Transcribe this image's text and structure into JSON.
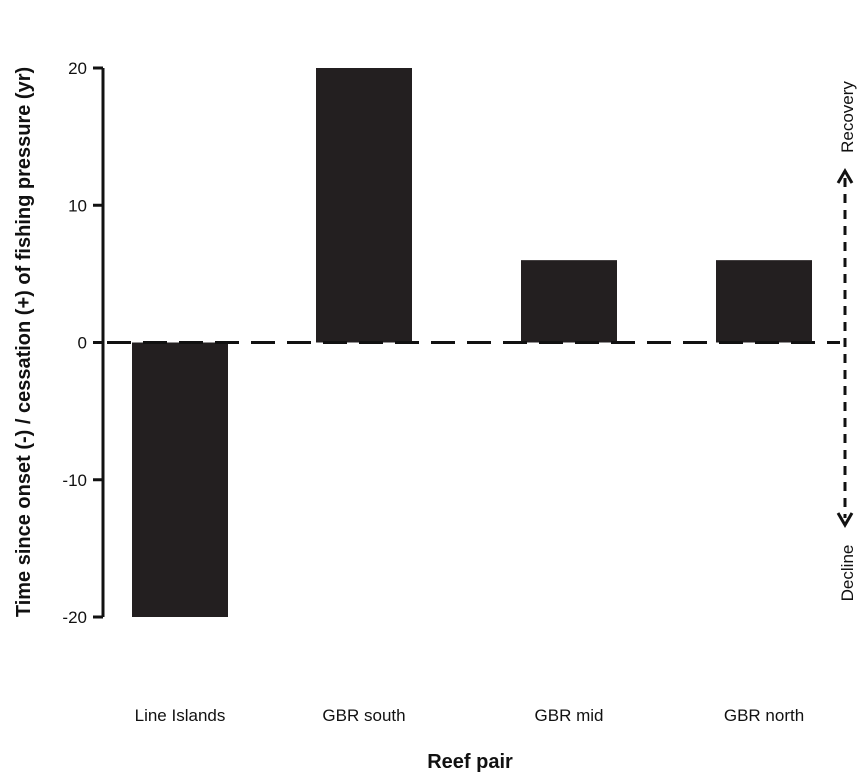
{
  "chart_data": {
    "type": "bar",
    "categories": [
      "Line Islands",
      "GBR south",
      "GBR mid",
      "GBR north"
    ],
    "values": [
      -20,
      20,
      6,
      6
    ],
    "xlabel": "Reef pair",
    "ylabel": "Time since onset (-) / cessation (+) of fishing pressure (yr)",
    "ylim": [
      -20,
      20
    ],
    "yticks": [
      -20,
      -10,
      0,
      10,
      20
    ],
    "grid": false,
    "reference_line": 0,
    "annotations": {
      "top": "Recovery",
      "bottom": "Decline"
    },
    "colors": {
      "bar": "#231f20",
      "axis": "#111111"
    }
  }
}
